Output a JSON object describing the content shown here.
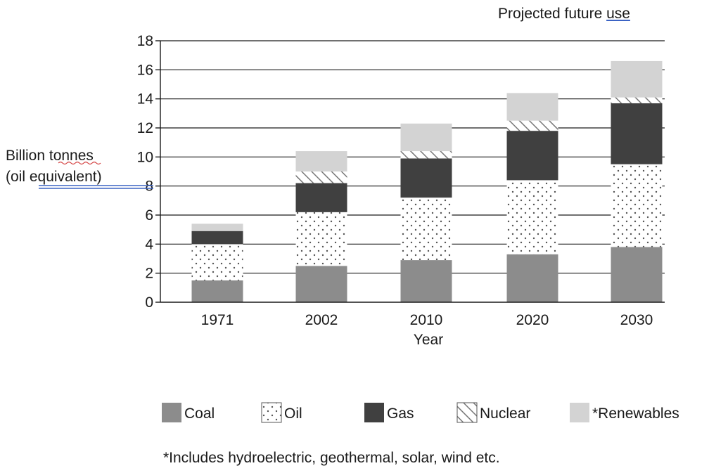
{
  "chart_data": {
    "type": "bar",
    "stacked": true,
    "categories": [
      "1971",
      "2002",
      "2010",
      "2020",
      "2030"
    ],
    "series": [
      {
        "name": "Coal",
        "values": [
          1.5,
          2.5,
          2.9,
          3.3,
          3.8
        ]
      },
      {
        "name": "Oil",
        "values": [
          2.5,
          3.7,
          4.3,
          5.1,
          5.7
        ]
      },
      {
        "name": "Gas",
        "values": [
          0.9,
          2.0,
          2.7,
          3.4,
          4.2
        ]
      },
      {
        "name": "Nuclear",
        "values": [
          0.0,
          0.8,
          0.5,
          0.7,
          0.4
        ]
      },
      {
        "name": "*Renewables",
        "values": [
          0.5,
          1.4,
          1.9,
          1.9,
          2.5
        ]
      }
    ],
    "title": "",
    "xlabel": "Year",
    "ylabel_line1": "Billion tonnes",
    "ylabel_line2": "(oil equivalent)",
    "ylim": [
      0,
      18
    ],
    "yticks": [
      0,
      2,
      4,
      6,
      8,
      10,
      12,
      14,
      16,
      18
    ],
    "grid": true,
    "legend_position": "bottom",
    "annotation": "Projected future use",
    "footnote": "*Includes hydroelectric, geothermal, solar, wind etc.",
    "colors": {
      "Coal": "#8c8c8c",
      "Oil": "#ffffff",
      "Gas": "#404040",
      "Nuclear": "#ffffff",
      "*Renewables": "#d3d3d3"
    }
  }
}
